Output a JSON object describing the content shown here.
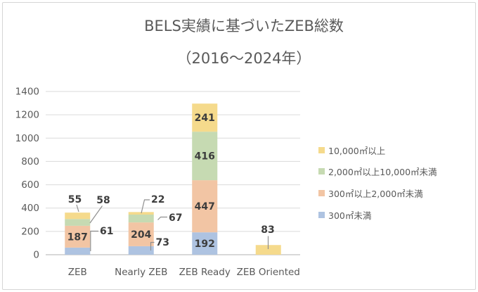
{
  "title": {
    "line1": "BELS実績に基づいたZEB総数",
    "line2": "（2016～2024年）"
  },
  "chart_data": {
    "type": "bar",
    "stacked": true,
    "title": "BELS実績に基づいたZEB総数（2016～2024年）",
    "categories": [
      "ZEB",
      "Nearly ZEB",
      "ZEB Ready",
      "ZEB Oriented"
    ],
    "series": [
      {
        "name": "300㎡未満",
        "color": "#aec3e1",
        "values": [
          61,
          73,
          192,
          0
        ]
      },
      {
        "name": "300㎡以上2,000㎡未満",
        "color": "#f2c5a4",
        "values": [
          187,
          204,
          447,
          0
        ]
      },
      {
        "name": "2,000㎡以上10,000㎡未満",
        "color": "#c6dab2",
        "values": [
          58,
          67,
          416,
          0
        ]
      },
      {
        "name": "10,000㎡以上",
        "color": "#f5da8c",
        "values": [
          55,
          22,
          241,
          83
        ]
      }
    ],
    "ylim": [
      0,
      1400
    ],
    "yticks": [
      0,
      200,
      400,
      600,
      800,
      1000,
      1200,
      1400
    ],
    "grid": true,
    "legend_position": "right",
    "legend_order_top_to_bottom": [
      "10,000㎡以上",
      "2,000㎡以上10,000㎡未満",
      "300㎡以上2,000㎡未満",
      "300㎡未満"
    ],
    "colors": {
      "axis_text": "#595959",
      "data_label_text": "#3d3d3d",
      "gridline": "#dadada",
      "axis_line": "#c0c0c0",
      "leader_line": "#8f8f8f",
      "frame_border": "#d5d5d5"
    }
  }
}
